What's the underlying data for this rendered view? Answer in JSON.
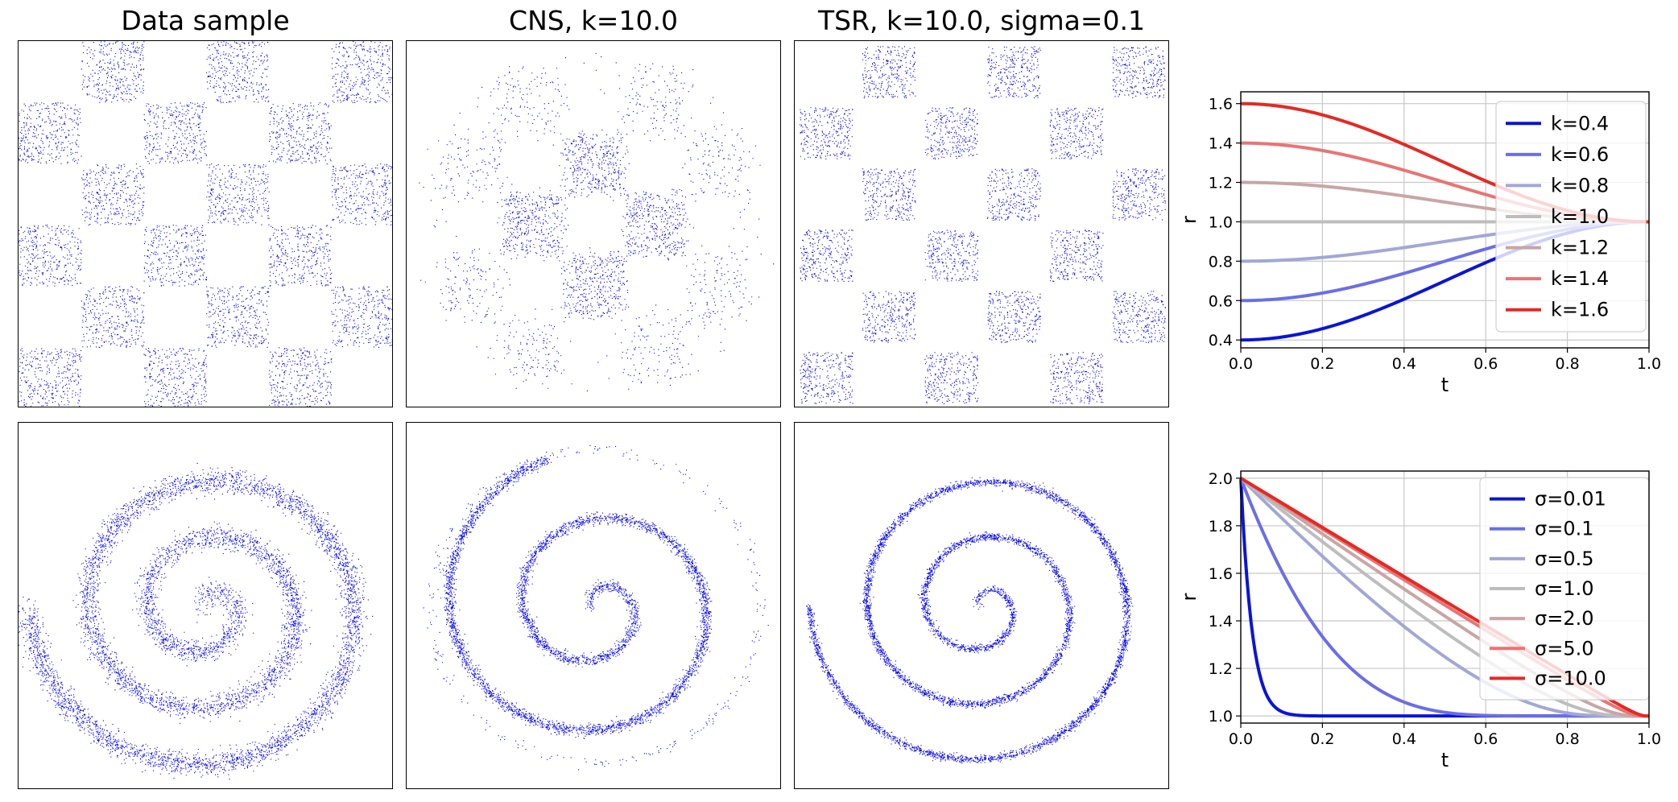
{
  "column_titles": [
    "Data sample",
    "CNS, k=10.0",
    "TSR, k=10.0, sigma=0.1"
  ],
  "point_color": "#0000ee",
  "chart_data": [
    {
      "type": "scatter",
      "panel": "checkerboard-data-sample",
      "title": "Data sample",
      "description_shape": "checkerboard",
      "grid_cells": 6
    },
    {
      "type": "scatter",
      "panel": "checkerboard-cns",
      "title": "CNS, k=10.0",
      "description_shape": "checkerboard-partial"
    },
    {
      "type": "scatter",
      "panel": "checkerboard-tsr",
      "title": "TSR, k=10.0, sigma=0.1",
      "description_shape": "checkerboard-sharp"
    },
    {
      "type": "scatter",
      "panel": "spiral-data-sample",
      "description_shape": "spiral"
    },
    {
      "type": "scatter",
      "panel": "spiral-cns",
      "description_shape": "spiral-partial"
    },
    {
      "type": "scatter",
      "panel": "spiral-tsr",
      "description_shape": "spiral-sharp"
    },
    {
      "type": "line",
      "panel": "k-curves",
      "xlabel": "t",
      "ylabel": "r",
      "xlim": [
        0.0,
        1.0
      ],
      "ylim": [
        0.36,
        1.66
      ],
      "xticks": [
        "0.0",
        "0.2",
        "0.4",
        "0.6",
        "0.8",
        "1.0"
      ],
      "yticks": [
        "0.4",
        "0.6",
        "0.8",
        "1.0",
        "1.2",
        "1.4",
        "1.6"
      ],
      "grid": true,
      "legend_position": "top-right",
      "series": [
        {
          "name": "k=0.4",
          "k": 0.4,
          "color": "#0a14d8"
        },
        {
          "name": "k=0.6",
          "k": 0.6,
          "color": "#6b6ee8"
        },
        {
          "name": "k=0.8",
          "k": 0.8,
          "color": "#a3a7d6"
        },
        {
          "name": "k=1.0",
          "k": 1.0,
          "color": "#bdbdbd"
        },
        {
          "name": "k=1.2",
          "k": 1.2,
          "color": "#c9a5a5"
        },
        {
          "name": "k=1.4",
          "k": 1.4,
          "color": "#e97474"
        },
        {
          "name": "k=1.6",
          "k": 1.6,
          "color": "#e32a24"
        }
      ]
    },
    {
      "type": "line",
      "panel": "sigma-curves",
      "xlabel": "t",
      "ylabel": "r",
      "xlim": [
        0.0,
        1.0
      ],
      "ylim": [
        0.97,
        2.03
      ],
      "xticks": [
        "0.0",
        "0.2",
        "0.4",
        "0.6",
        "0.8",
        "1.0"
      ],
      "yticks": [
        "1.0",
        "1.2",
        "1.4",
        "1.6",
        "1.8",
        "2.0"
      ],
      "grid": true,
      "legend_position": "top-right",
      "series": [
        {
          "name": "σ=0.01",
          "sigma": 0.01,
          "color": "#0a14d8"
        },
        {
          "name": "σ=0.1",
          "sigma": 0.1,
          "color": "#6b6ee8"
        },
        {
          "name": "σ=0.5",
          "sigma": 0.5,
          "color": "#a3a7d6"
        },
        {
          "name": "σ=1.0",
          "sigma": 1.0,
          "color": "#bdbdbd"
        },
        {
          "name": "σ=2.0",
          "sigma": 2.0,
          "color": "#c9a5a5"
        },
        {
          "name": "σ=5.0",
          "sigma": 5.0,
          "color": "#e97474"
        },
        {
          "name": "σ=10.0",
          "sigma": 10.0,
          "color": "#e32a24"
        }
      ]
    }
  ]
}
